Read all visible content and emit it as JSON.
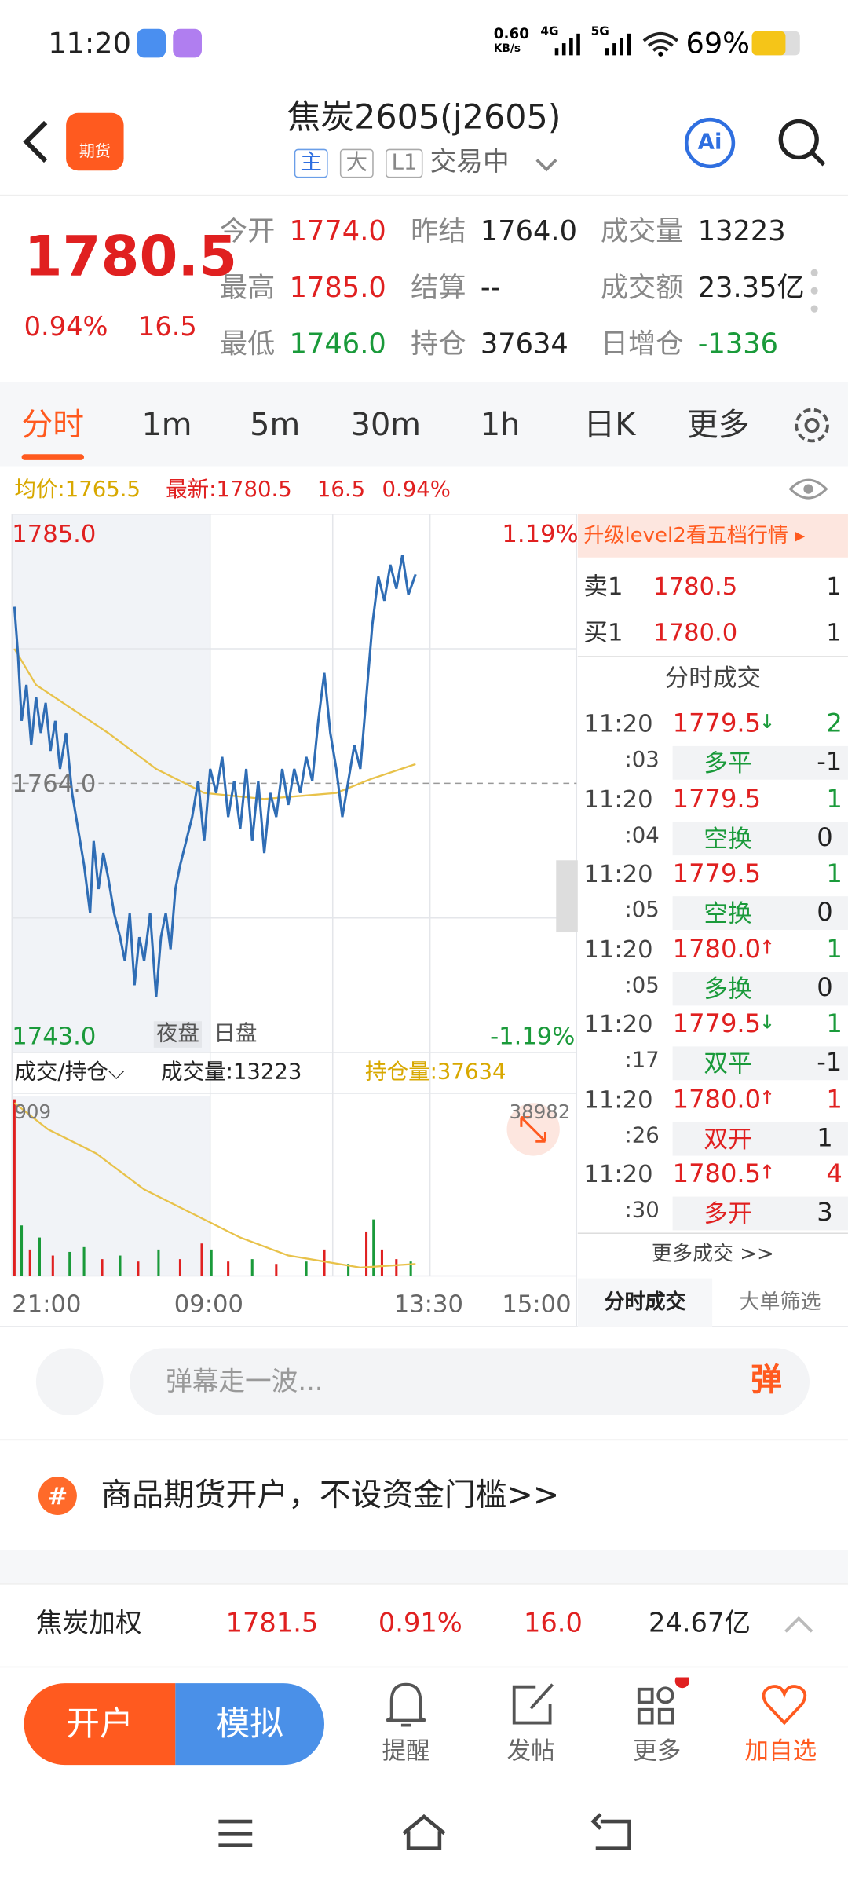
{
  "status": {
    "time": "11:20",
    "speed": "0.60",
    "speed_unit": "KB/s",
    "net1": "4G",
    "net2": "5G",
    "battery": "69%"
  },
  "header": {
    "badge": "期货",
    "title": "焦炭2605(j2605)",
    "tags": [
      "主",
      "大",
      "L1"
    ],
    "state": "交易中",
    "ai": "Ai"
  },
  "quote": {
    "price": "1780.5",
    "change_pct": "0.94%",
    "change": "16.5",
    "fields": [
      {
        "label": "今开",
        "value": "1774.0",
        "color": "#e02020"
      },
      {
        "label": "昨结",
        "value": "1764.0",
        "color": "#222"
      },
      {
        "label": "成交量",
        "value": "13223",
        "color": "#222"
      },
      {
        "label": "最高",
        "value": "1785.0",
        "color": "#e02020"
      },
      {
        "label": "结算",
        "value": "--",
        "color": "#222"
      },
      {
        "label": "成交额",
        "value": "23.35亿",
        "color": "#222"
      },
      {
        "label": "最低",
        "value": "1746.0",
        "color": "#1a9a3a"
      },
      {
        "label": "持仓",
        "value": "37634",
        "color": "#222"
      },
      {
        "label": "日增仓",
        "value": "-1336",
        "color": "#1a9a3a"
      }
    ]
  },
  "tabs": [
    "分时",
    "1m",
    "5m",
    "30m",
    "1h",
    "日K",
    "更多"
  ],
  "info": {
    "avg": "均价:1765.5",
    "last": "最新:1780.5",
    "change": "16.5",
    "pct": "0.94%"
  },
  "chart": {
    "high": "1785.0",
    "high_pct": "1.19%",
    "mid": "1764.0",
    "low": "1743.0",
    "low_pct": "-1.19%",
    "night": "夜盘",
    "day": "日盘",
    "sub_select": "成交/持仓",
    "volume": "成交量:13223",
    "oi": "持仓量:37634",
    "vol_max": "909",
    "oi_max": "38982",
    "x_labels": [
      "21:00",
      "09:00",
      "13:30",
      "15:00"
    ]
  },
  "book": {
    "banner": "升级level2看五档行情 ▸",
    "rows": [
      {
        "side": "卖1",
        "price": "1780.5",
        "qty": "1"
      },
      {
        "side": "买1",
        "price": "1780.0",
        "qty": "1"
      }
    ],
    "title": "分时成交",
    "trades": [
      {
        "time": "11:20",
        "sec": ":03",
        "price": "1779.5",
        "dir": "↓",
        "vol": "2",
        "type": "多平",
        "oi": "-1",
        "color": "#1a9a3a"
      },
      {
        "time": "11:20",
        "sec": ":04",
        "price": "1779.5",
        "dir": "",
        "vol": "1",
        "type": "空换",
        "oi": "0",
        "color": "#1a9a3a"
      },
      {
        "time": "11:20",
        "sec": ":05",
        "price": "1779.5",
        "dir": "",
        "vol": "1",
        "type": "空换",
        "oi": "0",
        "color": "#1a9a3a"
      },
      {
        "time": "11:20",
        "sec": ":05",
        "price": "1780.0",
        "dir": "↑",
        "vol": "1",
        "type": "多换",
        "oi": "0",
        "color": "#1a9a3a"
      },
      {
        "time": "11:20",
        "sec": ":17",
        "price": "1779.5",
        "dir": "↓",
        "vol": "1",
        "type": "双平",
        "oi": "-1",
        "color": "#1a9a3a"
      },
      {
        "time": "11:20",
        "sec": ":26",
        "price": "1780.0",
        "dir": "↑",
        "vol": "1",
        "type": "双开",
        "oi": "1",
        "color": "#e02020"
      },
      {
        "time": "11:20",
        "sec": ":30",
        "price": "1780.5",
        "dir": "↑",
        "vol": "4",
        "type": "多开",
        "oi": "3",
        "color": "#e02020"
      }
    ],
    "more": "更多成交 >>",
    "tab1": "分时成交",
    "tab2": "大单筛选"
  },
  "comment": {
    "placeholder": "弹幕走一波...",
    "button": "弹"
  },
  "ad": {
    "icon": "#",
    "text": "商品期货开户，不设资金门槛>>"
  },
  "index": {
    "name": "焦炭加权",
    "price": "1781.5",
    "pct": "0.91%",
    "change": "16.0",
    "amount": "24.67亿"
  },
  "actions": {
    "open": "开户",
    "sim": "模拟",
    "items": [
      "提醒",
      "发帖",
      "更多",
      "加自选"
    ]
  }
}
